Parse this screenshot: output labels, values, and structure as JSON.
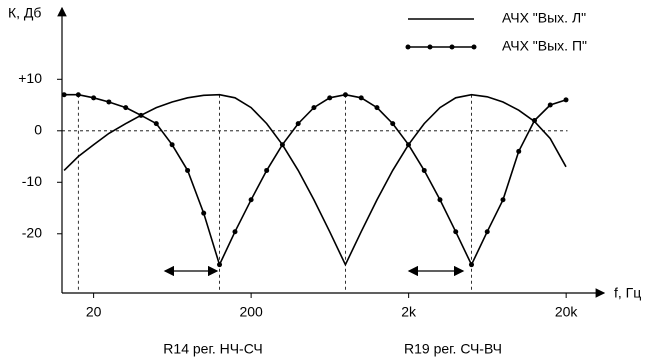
{
  "chart_data": {
    "type": "line",
    "y_label": "К, Дб",
    "x_label": "f, Гц",
    "x": [
      13,
      16,
      20,
      25,
      32,
      40,
      50,
      63,
      79,
      100,
      126,
      158,
      200,
      251,
      316,
      398,
      501,
      631,
      794,
      1000,
      1259,
      1585,
      1995,
      2512,
      3162,
      3981,
      5012,
      6310,
      7943,
      10000,
      12589,
      15849,
      19953
    ],
    "series": [
      {
        "name": "АЧХ \"Вых. Л\"",
        "color": "#000000",
        "markers": false,
        "values": [
          -7.7,
          -5,
          -2.7,
          -0.5,
          1.4,
          3,
          4.5,
          5.6,
          6.4,
          6.9,
          7,
          6.4,
          4.5,
          1.4,
          -2.7,
          -7.7,
          -13.4,
          -19.6,
          -26,
          -19.6,
          -13.4,
          -7.7,
          -2.7,
          1.4,
          4.5,
          6.4,
          7,
          6.6,
          5.6,
          4,
          1.8,
          -1.5,
          -7
        ]
      },
      {
        "name": "АЧХ \"Вых. П\"",
        "color": "#000000",
        "markers": true,
        "values": [
          7,
          7,
          6.4,
          5.6,
          4.5,
          3,
          1.4,
          -2.7,
          -7.7,
          -16,
          -26,
          -19.6,
          -13.4,
          -7.7,
          -2.7,
          1.4,
          4.5,
          6.4,
          7,
          6.4,
          4.5,
          1.4,
          -2.7,
          -7.7,
          -13.4,
          -19.6,
          -26,
          -19.6,
          -13.4,
          -4,
          2,
          5,
          6
        ]
      }
    ],
    "xscale": "log",
    "xlim": [
      12.6,
      31623
    ],
    "ylim": [
      -31.5,
      22
    ],
    "xticks": [
      20,
      200,
      {
        "value": 2000,
        "label": "2k"
      },
      {
        "value": 20000,
        "label": "20k"
      }
    ],
    "yticks": [
      {
        "value": 10,
        "label": "+10"
      },
      0,
      -10,
      -20
    ],
    "annotations": [
      "R14  рег. НЧ-СЧ",
      "R19  рег. СЧ-ВЧ"
    ]
  }
}
